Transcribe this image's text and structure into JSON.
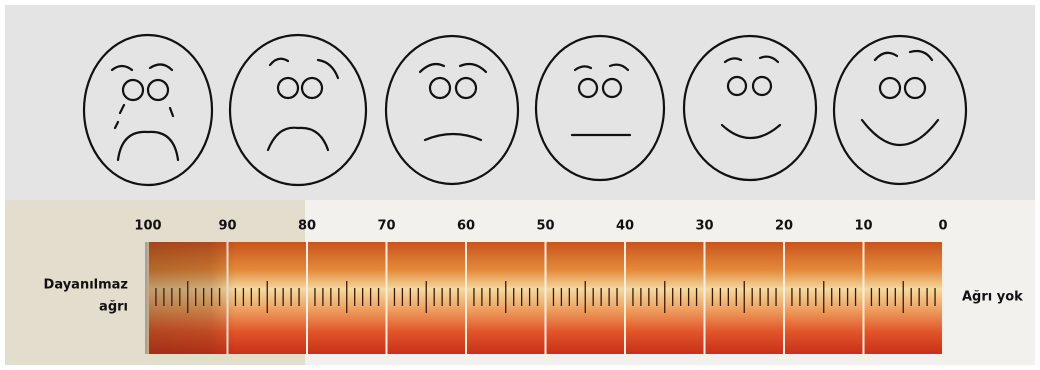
{
  "scale": {
    "ticks": [
      100,
      90,
      80,
      70,
      60,
      50,
      40,
      30,
      20,
      10,
      0
    ]
  },
  "left_label": [
    "Dayanılmaz",
    "ağrı"
  ],
  "right_label": "Ağrı yok"
}
